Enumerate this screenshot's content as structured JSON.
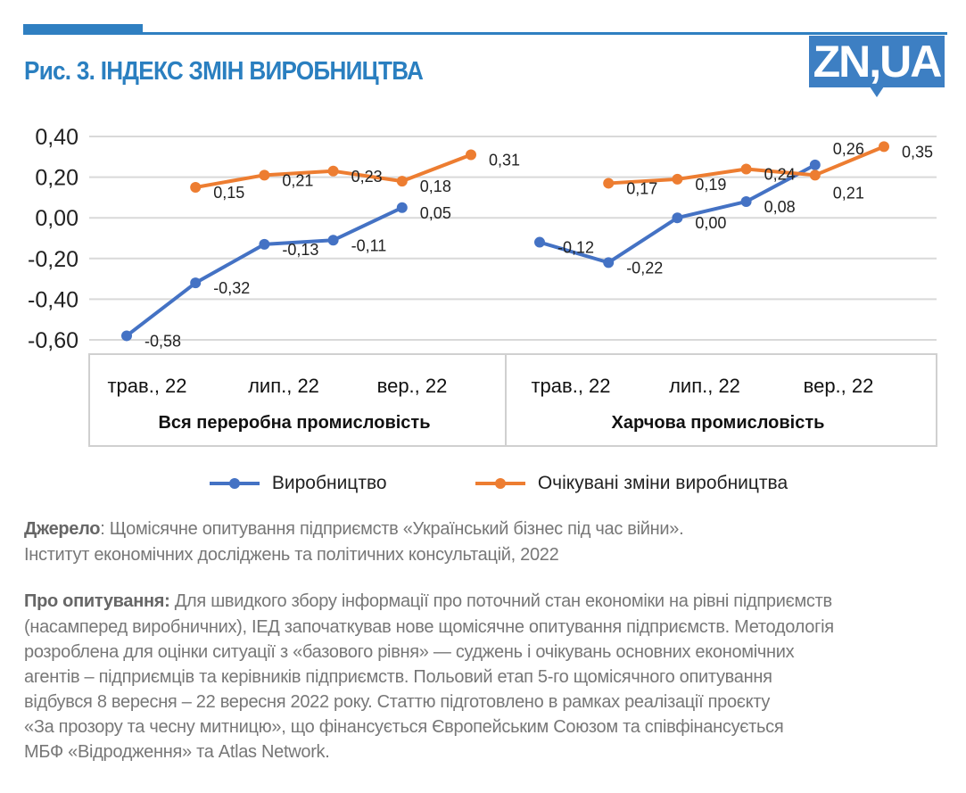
{
  "header": {
    "title": "Рис. 3. ІНДЕКС ЗМІН ВИРОБНИЦТВА",
    "logo": "ZN,UA",
    "accent_color": "#2f7fc1"
  },
  "chart_data": {
    "type": "line",
    "ylim": [
      -0.6,
      0.4
    ],
    "yticks": [
      "0,40",
      "0,20",
      "0,00",
      "-0,20",
      "-0,40",
      "-0,60"
    ],
    "ytick_values": [
      0.4,
      0.2,
      0.0,
      -0.2,
      -0.4,
      -0.6
    ],
    "grid": true,
    "groups": [
      {
        "name": "Вся переробна промисловість",
        "tick_labels": [
          "трав., 22",
          "лип., 22",
          "вер., 22"
        ]
      },
      {
        "name": "Харчова промисловість",
        "tick_labels": [
          "трав., 22",
          "лип., 22",
          "вер., 22"
        ]
      }
    ],
    "series": [
      {
        "name": "Виробництво",
        "color": "#4472c4",
        "groups": [
          [
            -0.58,
            -0.32,
            -0.13,
            -0.11,
            0.05,
            null
          ],
          [
            -0.12,
            -0.22,
            0.0,
            0.08,
            0.26,
            null
          ]
        ],
        "labels": [
          [
            "-0,58",
            "-0,32",
            "-0,13",
            "-0,11",
            "0,05",
            null
          ],
          [
            "-0,12",
            "-0,22",
            "0,00",
            "0,08",
            "0,26",
            null
          ]
        ]
      },
      {
        "name": "Очікувані зміни виробництва",
        "color": "#ed7d31",
        "groups": [
          [
            null,
            0.15,
            0.21,
            0.23,
            0.18,
            0.31
          ],
          [
            null,
            0.17,
            0.19,
            0.24,
            0.21,
            0.35
          ]
        ],
        "labels": [
          [
            null,
            "0,15",
            "0,21",
            "0,23",
            "0,18",
            "0,31"
          ],
          [
            null,
            "0,17",
            "0,19",
            "0,24",
            "0,21",
            "0,35"
          ]
        ]
      }
    ],
    "legend_position": "bottom"
  },
  "notes": {
    "source_label": "Джерело",
    "source_line1": ": Щомісячне опитування підприємств «Український бізнес під час війни».",
    "source_line2": "Інститут економічних досліджень та політичних консультацій, 2022",
    "about_label": "Про опитування:",
    "about_lines": [
      " Для швидкого збору інформації про поточний стан економіки на рівні підприємств",
      "(насамперед виробничних), ІЕД  започаткував нове щомісячне опитування підприємств. Методологія",
      "розроблена для оцінки ситуації з «базового рівня» — суджень і очікувань основних економічних",
      "агентів – підприємців та керівників підприємств. Польовий етап 5-го щомісячного опитування",
      "відбувся 8 вересня – 22 вересня 2022 року. Статтю підготовлено в рамках реалізації проєкту",
      "«За прозору та чесну митницю», що фінансується Європейським Союзом та співфінансується",
      "МБФ «Відродження» та Atlas Network."
    ]
  }
}
